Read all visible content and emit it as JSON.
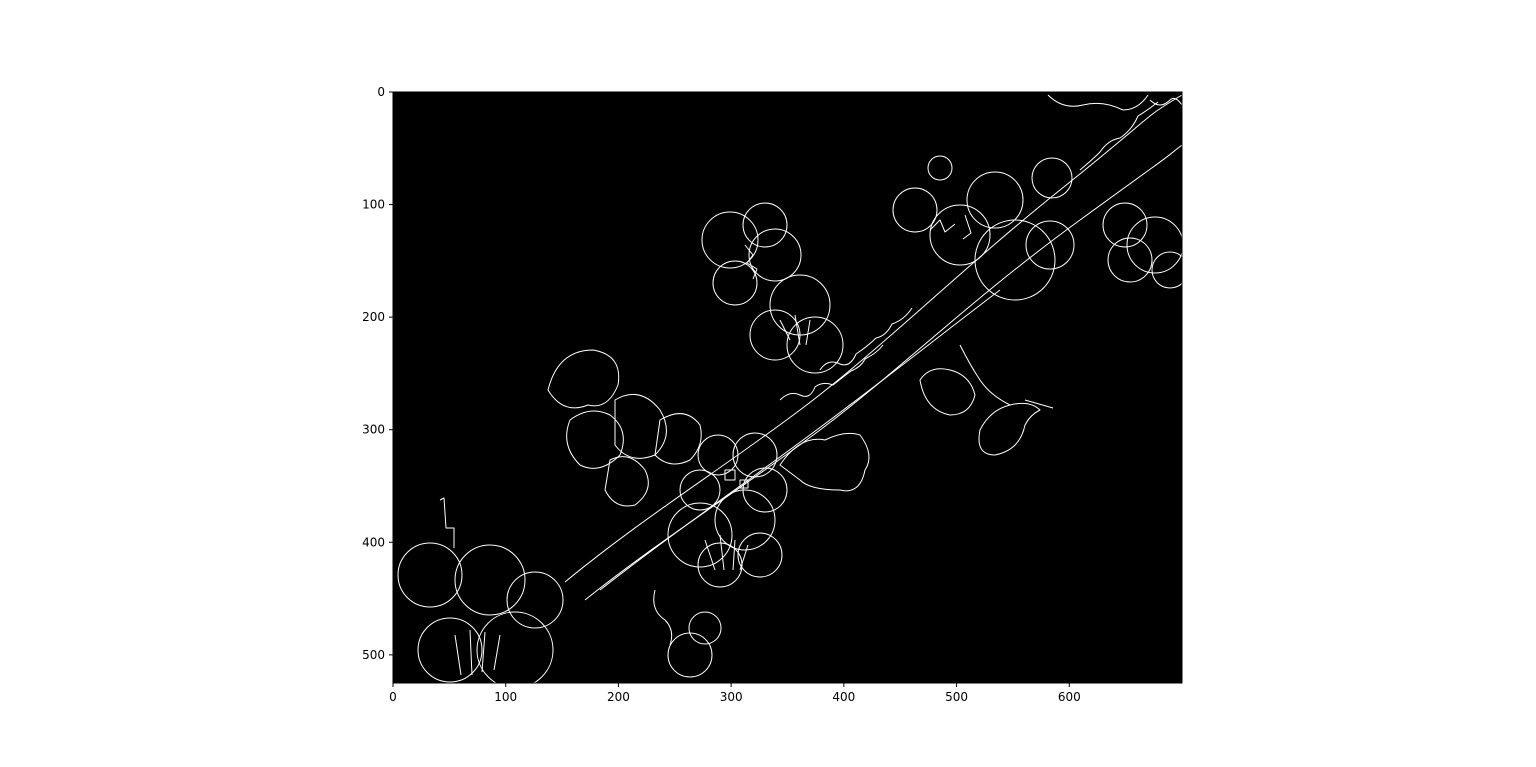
{
  "figure": {
    "image_description_icon": "canny-edge-detection-image-icon",
    "colors": {
      "background": "#ffffff",
      "image_background": "#000000",
      "edge": "#ffffff",
      "axis": "#000000"
    },
    "x_axis": {
      "range": [
        0,
        700
      ],
      "ticks": [
        0,
        100,
        200,
        300,
        400,
        500,
        600
      ],
      "tick_labels": [
        "0",
        "100",
        "200",
        "300",
        "400",
        "500",
        "600"
      ]
    },
    "y_axis": {
      "range": [
        0,
        525
      ],
      "inverted": true,
      "ticks": [
        0,
        100,
        200,
        300,
        400,
        500
      ],
      "tick_labels": [
        "0",
        "100",
        "200",
        "300",
        "400",
        "500"
      ]
    }
  }
}
